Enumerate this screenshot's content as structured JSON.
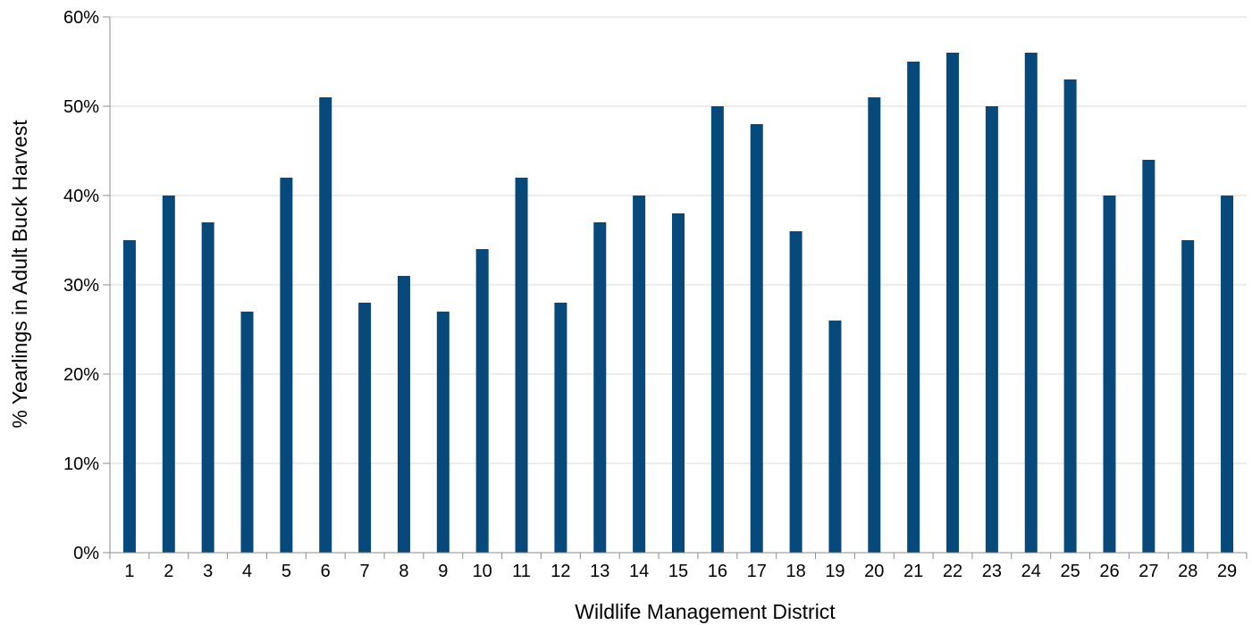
{
  "colors": {
    "bar": "#06497a",
    "grid": "#d9d9d9",
    "axis": "#8c8c8c"
  },
  "chart_data": {
    "type": "bar",
    "categories": [
      "1",
      "2",
      "3",
      "4",
      "5",
      "6",
      "7",
      "8",
      "9",
      "10",
      "11",
      "12",
      "13",
      "14",
      "15",
      "16",
      "17",
      "18",
      "19",
      "20",
      "21",
      "22",
      "23",
      "24",
      "25",
      "26",
      "27",
      "28",
      "29"
    ],
    "values": [
      35,
      40,
      37,
      27,
      42,
      51,
      28,
      31,
      27,
      34,
      42,
      28,
      37,
      40,
      38,
      50,
      48,
      36,
      26,
      51,
      55,
      56,
      50,
      56,
      53,
      40,
      44,
      35,
      40
    ],
    "title": "",
    "xlabel": "Wildlife Management District",
    "ylabel": "% Yearlings in Adult Buck Harvest",
    "ylim": [
      0,
      60
    ],
    "yticks": [
      0,
      10,
      20,
      30,
      40,
      50,
      60
    ],
    "ytick_labels": [
      "0%",
      "10%",
      "20%",
      "30%",
      "40%",
      "50%",
      "60%"
    ],
    "grid": true,
    "legend": "none"
  }
}
